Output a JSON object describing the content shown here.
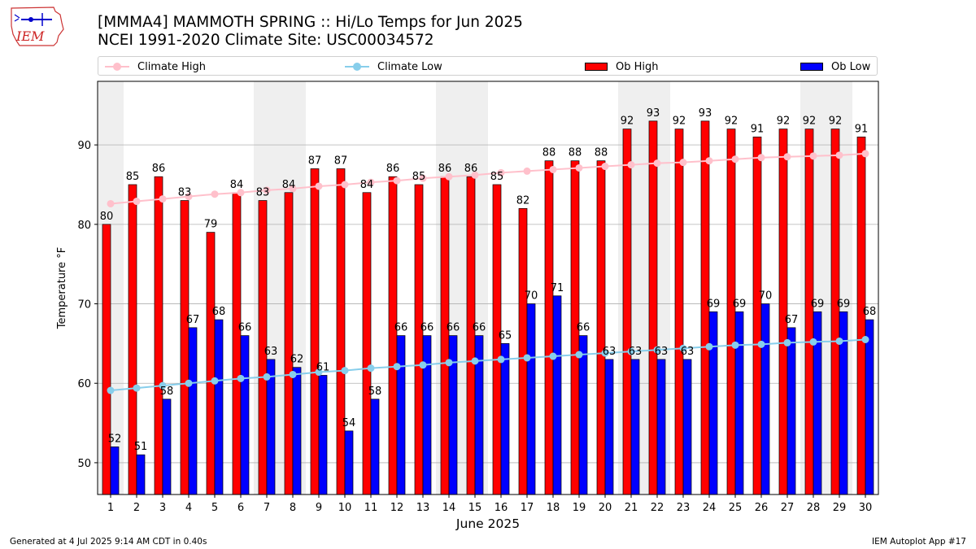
{
  "title": "[MMMA4] MAMMOTH SPRING :: Hi/Lo Temps for Jun 2025",
  "subtitle": "NCEI 1991-2020 Climate Site: USC00034572",
  "logo_text": "IEM",
  "footer_left": "Generated at 4 Jul 2025 9:14 AM CDT in 0.40s",
  "footer_right": "IEM Autoplot App #17",
  "legend": {
    "climate_high": "Climate High",
    "climate_low": "Climate Low",
    "ob_high": "Ob High",
    "ob_low": "Ob Low"
  },
  "colors": {
    "ob_high": "#ff0000",
    "ob_low": "#0000ff",
    "climate_high": "#ffc0cb",
    "climate_low": "#87ceeb",
    "weekend_band": "#efefef",
    "grid": "#b0b0b0"
  },
  "chart_data": {
    "type": "bar",
    "xlabel": "June 2025",
    "ylabel": "Temperature °F",
    "ylim": [
      46,
      98
    ],
    "yticks": [
      50,
      60,
      70,
      80,
      90
    ],
    "grid": "horizontal",
    "legend_placement": "top",
    "categories": [
      "1",
      "2",
      "3",
      "4",
      "5",
      "6",
      "7",
      "8",
      "9",
      "10",
      "11",
      "12",
      "13",
      "14",
      "15",
      "16",
      "17",
      "18",
      "19",
      "20",
      "21",
      "22",
      "23",
      "24",
      "25",
      "26",
      "27",
      "28",
      "29",
      "30"
    ],
    "shaded_days": [
      1,
      7,
      8,
      14,
      15,
      21,
      22,
      28,
      29
    ],
    "series": [
      {
        "name": "Ob High",
        "kind": "bar",
        "values": [
          80,
          85,
          86,
          83,
          79,
          84,
          83,
          84,
          87,
          87,
          84,
          86,
          85,
          86,
          86,
          85,
          82,
          88,
          88,
          88,
          92,
          93,
          92,
          93,
          92,
          91,
          92,
          92,
          92,
          91
        ]
      },
      {
        "name": "Ob Low",
        "kind": "bar",
        "values": [
          52,
          51,
          58,
          67,
          68,
          66,
          63,
          62,
          61,
          54,
          58,
          66,
          66,
          66,
          66,
          65,
          70,
          71,
          66,
          63,
          63,
          63,
          63,
          69,
          69,
          70,
          67,
          69,
          69,
          68
        ]
      },
      {
        "name": "Climate High",
        "kind": "line",
        "values": [
          82.6,
          82.9,
          83.2,
          83.5,
          83.8,
          84.0,
          84.3,
          84.5,
          84.8,
          85.0,
          85.3,
          85.5,
          85.8,
          86.0,
          86.2,
          86.5,
          86.7,
          86.9,
          87.1,
          87.3,
          87.5,
          87.7,
          87.8,
          88.0,
          88.2,
          88.4,
          88.5,
          88.6,
          88.7,
          88.9
        ]
      },
      {
        "name": "Climate Low",
        "kind": "line",
        "values": [
          59.1,
          59.4,
          59.7,
          60.0,
          60.3,
          60.6,
          60.8,
          61.1,
          61.4,
          61.6,
          61.9,
          62.1,
          62.3,
          62.6,
          62.8,
          63.0,
          63.2,
          63.4,
          63.6,
          63.8,
          64.0,
          64.2,
          64.4,
          64.6,
          64.8,
          64.9,
          65.1,
          65.2,
          65.3,
          65.5
        ]
      }
    ]
  }
}
